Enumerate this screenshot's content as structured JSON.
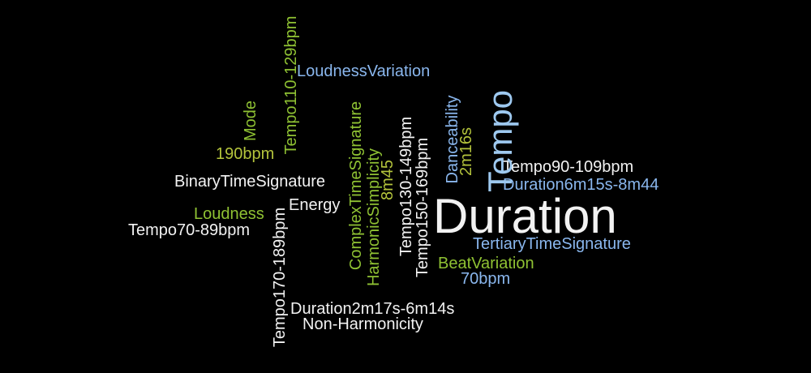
{
  "words": {
    "duration": "Duration",
    "tempo": "Tempo",
    "loudness_variation": "LoudnessVariation",
    "tempo110_129": "Tempo110-129bpm",
    "mode": "Mode",
    "bpm190": "190bpm",
    "binary_time_signature": "BinaryTimeSignature",
    "energy": "Energy",
    "loudness": "Loudness",
    "tempo70_89": "Tempo70-89bpm",
    "tempo170_189": "Tempo170-189bpm",
    "complex_time_signature": "ComplexTimeSignature",
    "harmonic_simplicity": "HarmonicSimplicity",
    "m8m45": "8m45",
    "tempo130_149": "Tempo130-149bpm",
    "tempo150_169": "Tempo150-169bpm",
    "danceability": "Danceability",
    "m2m16s": "2m16s",
    "tempo90_109": "Tempo90-109bpm",
    "duration6m15s_8m44": "Duration6m15s-8m44",
    "tertiary_time_signature": "TertiaryTimeSignature",
    "beat_variation": "BeatVariation",
    "bpm70": "70bpm",
    "duration2m17s_6m14s": "Duration2m17s-6m14s",
    "non_harmonicity": "Non-Harmonicity"
  },
  "colors": {
    "background": "#000000",
    "white": "#f2f2f2",
    "blue": "#8ab7ee",
    "green": "#8fc233",
    "olive": "#b4c43c",
    "light_blue": "#9ec9f0"
  }
}
